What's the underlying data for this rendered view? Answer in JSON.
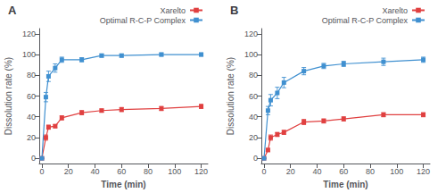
{
  "chart_data": [
    {
      "type": "line",
      "title": "A",
      "xlabel": "Time (min)",
      "ylabel": "Dissolution rate (%)",
      "xlim": [
        -2,
        125
      ],
      "ylim": [
        -5,
        125
      ],
      "xticks": [
        0,
        20,
        40,
        60,
        80,
        100,
        120
      ],
      "yticks": [
        0,
        20,
        40,
        60,
        80,
        100,
        120
      ],
      "x": [
        0,
        3,
        5,
        10,
        15,
        30,
        45,
        60,
        90,
        120
      ],
      "series": [
        {
          "name": "Xarelto",
          "color": "#e04040",
          "marker": "square",
          "values": [
            0,
            20,
            30,
            31,
            39,
            44,
            46,
            47,
            48,
            50
          ],
          "yerr": [
            0,
            2.5,
            2.0,
            1.5,
            2.0,
            2.0,
            1.5,
            2.0,
            2.0,
            2.0
          ]
        },
        {
          "name": "Optimal R-C-P Complex",
          "color": "#4090d0",
          "marker": "square",
          "values": [
            0,
            59,
            79,
            87,
            95,
            95,
            99,
            99,
            100,
            100
          ],
          "yerr": [
            0,
            4.5,
            5.0,
            4.0,
            2.5,
            2.0,
            1.5,
            1.5,
            1.5,
            1.5
          ]
        }
      ],
      "grid": false,
      "legend": "upper right"
    },
    {
      "type": "line",
      "title": "B",
      "xlabel": "Time (min)",
      "ylabel": "Dissolution rate (%)",
      "xlim": [
        -2,
        125
      ],
      "ylim": [
        -5,
        125
      ],
      "xticks": [
        0,
        20,
        40,
        60,
        80,
        100,
        120
      ],
      "yticks": [
        0,
        20,
        40,
        60,
        80,
        100,
        120
      ],
      "x": [
        0,
        3,
        5,
        10,
        15,
        30,
        45,
        60,
        90,
        120
      ],
      "series": [
        {
          "name": "Xarelto",
          "color": "#e04040",
          "marker": "square",
          "values": [
            0,
            8,
            20,
            23,
            25,
            35,
            36,
            38,
            42,
            42
          ],
          "yerr": [
            0,
            1.5,
            2.5,
            2.0,
            2.0,
            2.5,
            2.0,
            2.0,
            2.0,
            2.0
          ]
        },
        {
          "name": "Optimal R-C-P Complex",
          "color": "#4090d0",
          "marker": "square",
          "values": [
            0,
            46,
            56,
            63,
            73,
            84,
            89,
            91,
            93,
            95
          ],
          "yerr": [
            0,
            4.0,
            5.5,
            5.5,
            5.0,
            3.5,
            2.5,
            2.5,
            3.5,
            2.5
          ]
        }
      ],
      "grid": false,
      "legend": "upper right"
    }
  ]
}
